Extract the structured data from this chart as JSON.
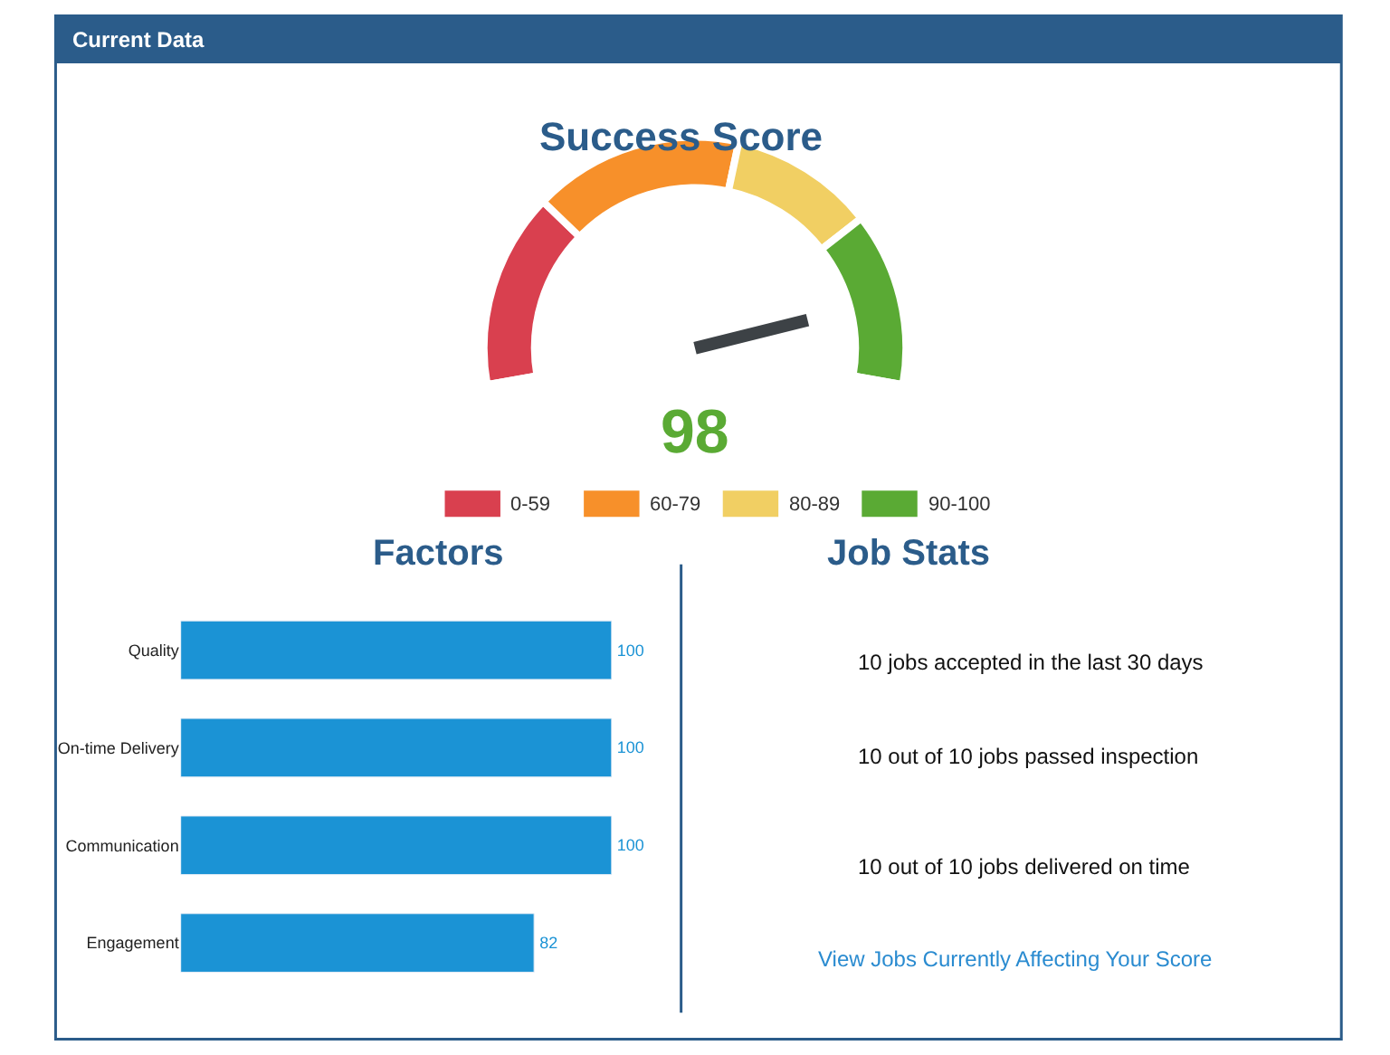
{
  "chart_data": [
    {
      "type": "donut",
      "title": "Success Score",
      "annotations": [
        "Current Data",
        "98"
      ],
      "categories": [
        "0-59",
        "60-79",
        "80-89",
        "90-100"
      ],
      "values": [
        27,
        29,
        20,
        24
      ],
      "colors": [
        "#d9404f",
        "#f7902a",
        "#f1cf63",
        "#5aaa34"
      ],
      "needle": "90-100",
      "legend": "bottom"
    },
    {
      "type": "bar",
      "title": "Factors",
      "orientation": "horizontal",
      "categories": [
        "Quality",
        "On-time Delivery",
        "Communication",
        "Engagement"
      ],
      "values": [
        100,
        100,
        100,
        82
      ],
      "color": "#1b93d5",
      "data_labels": true,
      "xlim": [
        0,
        100
      ],
      "tick_labels": "y"
    },
    {
      "type": "other",
      "title": "Job Stats",
      "annotations": [
        "10 jobs accepted in the last 30 days",
        "10 out of 10 jobs passed inspection",
        "10 out of 10 jobs delivered on time",
        "View Jobs Currently Affecting Your Score"
      ]
    }
  ]
}
